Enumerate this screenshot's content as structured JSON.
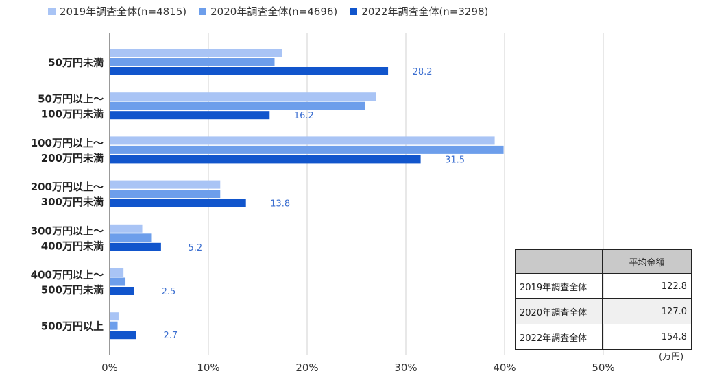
{
  "chart_data": {
    "type": "bar",
    "orientation": "horizontal",
    "categories": [
      [
        "50万円未満"
      ],
      [
        "50万円以上～",
        "100万円未満"
      ],
      [
        "100万円以上～",
        "200万円未満"
      ],
      [
        "200万円以上～",
        "300万円未満"
      ],
      [
        "300万円以上～",
        "400万円未満"
      ],
      [
        "400万円以上～",
        "500万円未満"
      ],
      [
        "500万円以上"
      ]
    ],
    "series": [
      {
        "name": "2019年調査全体(n=4815)",
        "color": "#a9c4f5",
        "values": [
          17.5,
          27.0,
          39.0,
          11.2,
          3.3,
          1.4,
          0.9
        ]
      },
      {
        "name": "2020年調査全体(n=4696)",
        "color": "#6d9eeb",
        "values": [
          16.7,
          25.9,
          39.9,
          11.2,
          4.2,
          1.6,
          0.8
        ]
      },
      {
        "name": "2022年調査全体(n=3298)",
        "color": "#1155cc",
        "values": [
          28.2,
          16.2,
          31.5,
          13.8,
          5.2,
          2.5,
          2.7
        ]
      }
    ],
    "data_labels": [
      "28.2",
      "16.2",
      "31.5",
      "13.8",
      "5.2",
      "2.5",
      "2.7"
    ],
    "x_ticks": [
      "0%",
      "10%",
      "20%",
      "30%",
      "40%",
      "50%"
    ],
    "xlim": [
      0,
      60
    ],
    "grid": true,
    "legend": "top"
  },
  "table": {
    "header": [
      "",
      "平均金額"
    ],
    "rows": [
      [
        "2019年調査全体",
        "122.8"
      ],
      [
        "2020年調査全体",
        "127.0"
      ],
      [
        "2022年調査全体",
        "154.8"
      ]
    ],
    "unit": "(万円)"
  }
}
